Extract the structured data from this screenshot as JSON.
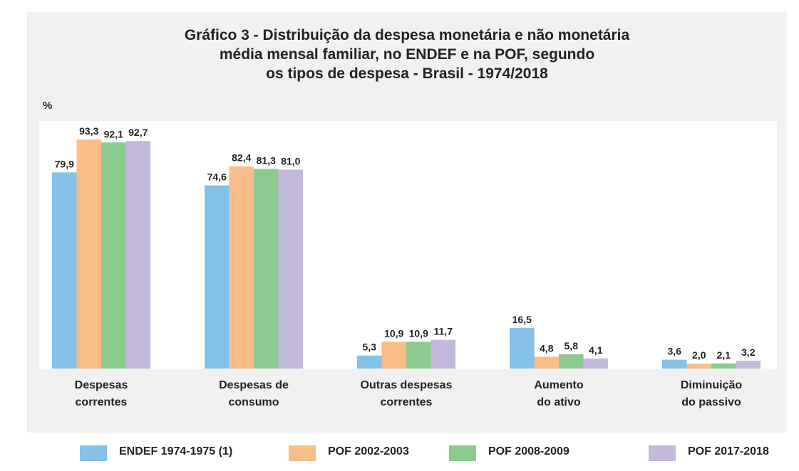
{
  "chart_data": {
    "type": "bar",
    "title": "Gráfico 3 - Distribuição da despesa monetária e não monetária\nmédia mensal familiar, no ENDEF e na POF, segundo\nos tipos de despesa - Brasil - 1974/2018",
    "y_label": "%",
    "categories": [
      "Despesas\ncorrentes",
      "Despesas de\nconsumo",
      "Outras despesas\ncorrentes",
      "Aumento\ndo ativo",
      "Diminuição\ndo passivo"
    ],
    "ylim": [
      0,
      100
    ],
    "series": [
      {
        "name": "ENDEF 1974-1975 (1)",
        "color": "#85c1e9",
        "values": [
          79.9,
          74.6,
          5.3,
          16.5,
          3.6
        ],
        "value_labels": [
          "79,9",
          "74,6",
          "5,3",
          "16,5",
          "3,6"
        ]
      },
      {
        "name": "POF 2002-2003",
        "color": "#f8be8a",
        "values": [
          93.3,
          82.4,
          10.9,
          4.8,
          2.0
        ],
        "value_labels": [
          "93,3",
          "82,4",
          "10,9",
          "4,8",
          "2,0"
        ]
      },
      {
        "name": "POF 2008-2009",
        "color": "#8dca8f",
        "values": [
          92.1,
          81.3,
          10.9,
          5.8,
          2.1
        ],
        "value_labels": [
          "92,1",
          "81,3",
          "10,9",
          "5,8",
          "2,1"
        ]
      },
      {
        "name": "POF 2017-2018",
        "color": "#c2b9dc",
        "values": [
          92.7,
          81.0,
          11.7,
          4.1,
          3.2
        ],
        "value_labels": [
          "92,7",
          "81,0",
          "11,7",
          "4,1",
          "3,2"
        ]
      }
    ]
  }
}
